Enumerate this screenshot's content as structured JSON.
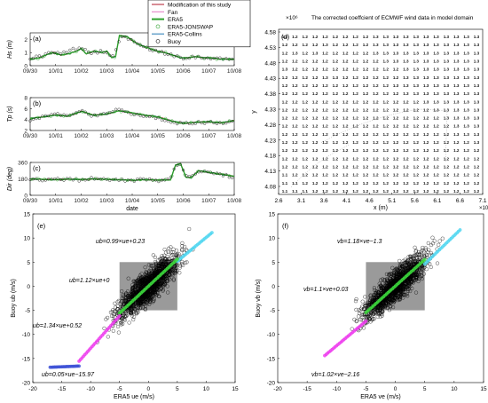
{
  "legend": {
    "entries": [
      {
        "label": "Modification of this study",
        "color": "#b2182b",
        "style": "line"
      },
      {
        "label": "Fan",
        "color": "#e377c2",
        "style": "line"
      },
      {
        "label": "ERA5",
        "color": "#2ca02c",
        "style": "thickline"
      },
      {
        "label": "ERA5-JONSWAP",
        "color": "#2ca02c",
        "style": "circle"
      },
      {
        "label": "ERA5-Collins",
        "color": "#1f77b4",
        "style": "line"
      },
      {
        "label": "Buoy",
        "color": "#000000",
        "style": "circle"
      }
    ]
  },
  "chart_data": [
    {
      "panel": "(a)",
      "type": "line",
      "ylabel": "Hs (m)",
      "ylim": [
        0,
        2.5
      ],
      "yticks": [
        "0",
        "1",
        "2"
      ],
      "xticks": [
        "09/30",
        "10/01",
        "10/02",
        "10/03",
        "10/04",
        "10/05",
        "10/06",
        "10/07",
        "10/08"
      ],
      "series": [
        {
          "name": "ERA5",
          "x": [
            0,
            0.3,
            0.6,
            0.9,
            1.2,
            1.5,
            1.8,
            2.0,
            2.2,
            2.5,
            2.8,
            3.0,
            3.2,
            3.35,
            3.5,
            3.8,
            4.1,
            4.4,
            4.7,
            5.0,
            5.3,
            5.6,
            5.9,
            6.2,
            6.5,
            6.8,
            7.1,
            7.4,
            7.7,
            8.0
          ],
          "values": [
            0.5,
            0.55,
            0.8,
            1.0,
            0.8,
            0.9,
            1.1,
            1.3,
            0.9,
            1.1,
            1.0,
            1.1,
            0.6,
            0.7,
            2.3,
            2.2,
            1.8,
            1.5,
            1.3,
            1.1,
            1.0,
            0.8,
            0.6,
            0.6,
            0.7,
            0.6,
            0.6,
            0.5,
            0.5,
            0.5
          ]
        },
        {
          "name": "Buoy",
          "x": [
            0,
            0.4,
            0.8,
            1.2,
            1.6,
            2.0,
            2.4,
            2.8,
            3.2,
            3.6,
            4.0,
            4.4,
            4.8,
            5.2,
            5.6,
            6.0,
            6.4,
            6.8,
            7.2,
            7.6,
            8.0
          ],
          "values": [
            0.6,
            0.7,
            1.0,
            0.9,
            1.2,
            1.4,
            1.0,
            1.1,
            0.7,
            2.2,
            1.9,
            1.4,
            1.2,
            1.0,
            0.8,
            0.6,
            0.7,
            0.6,
            0.6,
            0.5,
            0.5
          ]
        }
      ]
    },
    {
      "panel": "(b)",
      "type": "line",
      "ylabel": "Tp (s)",
      "ylim": [
        2,
        8
      ],
      "yticks": [
        "2",
        "4",
        "6",
        "8"
      ],
      "xticks": [
        "09/30",
        "10/01",
        "10/02",
        "10/03",
        "10/04",
        "10/05",
        "10/06",
        "10/07",
        "10/08"
      ],
      "series": [
        {
          "name": "ERA5",
          "x": [
            0,
            0.5,
            1.0,
            1.5,
            2.0,
            2.5,
            3.0,
            3.5,
            4.0,
            4.5,
            5.0,
            5.5,
            6.0,
            6.5,
            7.0,
            7.5,
            8.0
          ],
          "values": [
            4.2,
            4.5,
            4.8,
            4.6,
            5.5,
            4.8,
            5.0,
            5.6,
            5.2,
            4.8,
            4.5,
            3.8,
            3.3,
            3.5,
            3.6,
            3.4,
            3.8
          ]
        },
        {
          "name": "Buoy",
          "x": [
            0,
            0.5,
            1.0,
            1.5,
            2.0,
            2.5,
            3.0,
            3.5,
            4.0,
            4.5,
            5.0,
            5.5,
            6.0,
            6.5,
            7.0,
            7.5,
            8.0
          ],
          "values": [
            4.0,
            4.6,
            5.0,
            4.5,
            5.8,
            4.6,
            5.2,
            5.8,
            5.0,
            4.6,
            4.3,
            3.6,
            3.2,
            3.4,
            3.5,
            3.3,
            3.6
          ]
        }
      ]
    },
    {
      "panel": "(c)",
      "type": "line",
      "ylabel": "Dir (deg)",
      "xlabel": "date",
      "ylim": [
        0,
        360
      ],
      "yticks": [
        "0",
        "180",
        "360"
      ],
      "xticks": [
        "09/30",
        "10/01",
        "10/02",
        "10/03",
        "10/04",
        "10/05",
        "10/06",
        "10/07",
        "10/08"
      ],
      "series": [
        {
          "name": "ERA5",
          "x": [
            0,
            0.5,
            1.0,
            1.5,
            2.0,
            2.5,
            3.0,
            3.5,
            4.0,
            4.5,
            5.0,
            5.5,
            5.7,
            5.9,
            6.1,
            6.3,
            6.6,
            7.0,
            7.5,
            8.0
          ],
          "values": [
            180,
            175,
            170,
            178,
            172,
            180,
            175,
            170,
            165,
            170,
            168,
            170,
            330,
            345,
            200,
            190,
            270,
            250,
            230,
            210
          ]
        },
        {
          "name": "Buoy",
          "x": [
            0,
            0.5,
            1.0,
            1.5,
            2.0,
            2.5,
            3.0,
            3.5,
            4.0,
            4.5,
            5.0,
            5.5,
            5.7,
            5.9,
            6.1,
            6.3,
            6.6,
            7.0,
            7.5,
            8.0
          ],
          "values": [
            185,
            170,
            175,
            180,
            168,
            185,
            170,
            165,
            160,
            175,
            160,
            175,
            320,
            340,
            210,
            195,
            265,
            245,
            225,
            200
          ]
        }
      ]
    },
    {
      "panel": "(d)",
      "type": "table",
      "title": "The corrected coeffcient of ECMWF wind data in model domain",
      "xlabel": "x (m)",
      "ylabel": "y",
      "x_exponent": "×10⁵",
      "y_exponent": "×10⁶",
      "xticks": [
        "2.6",
        "3.1",
        "3.6",
        "4.1",
        "4.6",
        "5.1",
        "5.6",
        "6.1",
        "6.6",
        "7.1"
      ],
      "yticks": [
        "4.58",
        "4.53",
        "4.48",
        "4.43",
        "4.38",
        "4.33",
        "4.28",
        "4.23",
        "4.18",
        "4.13",
        "4.08"
      ],
      "rows": [
        [
          "1.2",
          "1.2",
          "1.2",
          "1.2",
          "1.2",
          "1.2",
          "1.2",
          "1.2",
          "1.2",
          "1.3",
          "1.3",
          "1.3",
          "1.3",
          "1.3",
          "1.3",
          "1.3",
          "1.3",
          "1.3",
          "1.3",
          "1.3"
        ],
        [
          "1.2",
          "1.2",
          "1.2",
          "1.2",
          "1.3",
          "1.2",
          "1.2",
          "1.2",
          "1.2",
          "1.3",
          "1.3",
          "1.3",
          "1.3",
          "1.3",
          "1.3",
          "1.3",
          "1.3",
          "1.3",
          "1.3",
          "1.3"
        ],
        [
          "1.2",
          "1.3",
          "1.2",
          "1.3",
          "1.2",
          "1.2",
          "1.2",
          "1.2",
          "1.2",
          "1.3",
          "1.3",
          "1.3",
          "1.3",
          "1.3",
          "1.3",
          "1.3",
          "1.3",
          "1.3",
          "1.3",
          "1.3"
        ],
        [
          "1.2",
          "1.2",
          "1.2",
          "1.2",
          "1.2",
          "1.2",
          "1.2",
          "1.2",
          "1.2",
          "1.2",
          "1.3",
          "1.3",
          "1.3",
          "1.3",
          "1.3",
          "1.3",
          "1.3",
          "1.3",
          "1.3",
          "1.3"
        ],
        [
          "1.3",
          "1.2",
          "1.2",
          "1.2",
          "1.2",
          "1.2",
          "1.2",
          "1.2",
          "1.2",
          "1.2",
          "1.2",
          "1.2",
          "1.3",
          "1.3",
          "1.3",
          "1.3",
          "1.3",
          "1.3",
          "1.3",
          "1.3"
        ],
        [
          "1.2",
          "1.2",
          "1.2",
          "1.2",
          "1.3",
          "1.3",
          "1.2",
          "1.2",
          "1.2",
          "1.2",
          "1.2",
          "1.2",
          "1.3",
          "1.3",
          "1.3",
          "1.3",
          "1.3",
          "1.3",
          "1.3",
          "1.3"
        ],
        [
          "1.2",
          "1.2",
          "1.2",
          "1.2",
          "1.2",
          "1.2",
          "1.2",
          "1.2",
          "1.2",
          "1.2",
          "1.2",
          "1.3",
          "1.3",
          "1.3",
          "1.3",
          "1.3",
          "1.3",
          "1.3",
          "1.3",
          "1.3"
        ],
        [
          "1.2",
          "1.2",
          "1.2",
          "1.2",
          "1.2",
          "1.2",
          "1.2",
          "1.2",
          "1.2",
          "1.2",
          "1.2",
          "1.2",
          "1.3",
          "1.3",
          "1.3",
          "1.3",
          "1.3",
          "1.3",
          "1.3",
          "1.3"
        ],
        [
          "1.2",
          "1.2",
          "1.2",
          "1.2",
          "1.2",
          "1.2",
          "1.2",
          "1.2",
          "1.2",
          "1.2",
          "1.2",
          "1.2",
          "1.2",
          "1.2",
          "1.3",
          "1.3",
          "1.3",
          "1.3",
          "1.3",
          "1.3"
        ],
        [
          "1.2",
          "1.2",
          "1.2",
          "1.2",
          "1.2",
          "1.2",
          "1.2",
          "1.2",
          "1.2",
          "1.2",
          "1.2",
          "1.2",
          "1.2",
          "1.2",
          "1.2",
          "1.3",
          "1.3",
          "1.3",
          "1.3",
          "1.3"
        ],
        [
          "1.2",
          "1.2",
          "1.2",
          "1.2",
          "1.2",
          "1.2",
          "1.2",
          "1.2",
          "1.2",
          "1.2",
          "1.2",
          "1.2",
          "1.2",
          "1.2",
          "1.2",
          "1.2",
          "1.3",
          "1.3",
          "1.3",
          "1.3"
        ],
        [
          "1.2",
          "1.2",
          "1.2",
          "1.2",
          "1.2",
          "1.2",
          "1.2",
          "1.2",
          "1.2",
          "1.2",
          "1.2",
          "1.2",
          "1.2",
          "1.2",
          "1.2",
          "1.2",
          "1.2",
          "1.3",
          "1.3",
          "1.3"
        ],
        [
          "1.2",
          "1.2",
          "1.2",
          "1.2",
          "1.2",
          "1.2",
          "1.2",
          "1.2",
          "1.2",
          "1.2",
          "1.2",
          "1.2",
          "1.2",
          "1.2",
          "1.2",
          "1.2",
          "1.2",
          "1.3",
          "1.3",
          "1.3"
        ],
        [
          "1.2",
          "1.2",
          "1.2",
          "1.2",
          "1.2",
          "1.2",
          "1.2",
          "1.2",
          "1.2",
          "1.2",
          "1.2",
          "1.2",
          "1.2",
          "1.2",
          "1.2",
          "1.2",
          "1.2",
          "1.2",
          "1.2",
          "1.3"
        ],
        [
          "1.2",
          "1.2",
          "1.2",
          "1.2",
          "1.2",
          "1.2",
          "1.2",
          "1.2",
          "1.2",
          "1.2",
          "1.2",
          "1.2",
          "1.2",
          "1.2",
          "1.2",
          "1.2",
          "1.2",
          "1.2",
          "1.2",
          "1.2"
        ],
        [
          "1.2",
          "1.2",
          "1.2",
          "1.2",
          "1.2",
          "1.2",
          "1.2",
          "1.2",
          "1.2",
          "1.2",
          "1.2",
          "1.2",
          "1.2",
          "1.2",
          "1.2",
          "1.2",
          "1.2",
          "1.2",
          "1.2",
          "1.2"
        ],
        [
          "1.2",
          "1.2",
          "1.2",
          "1.2",
          "1.2",
          "1.2",
          "1.2",
          "1.2",
          "1.2",
          "1.2",
          "1.2",
          "1.2",
          "1.2",
          "1.2",
          "1.2",
          "1.2",
          "1.2",
          "1.2",
          "1.2",
          "1.2"
        ],
        [
          "1.1",
          "1.2",
          "1.2",
          "1.2",
          "1.2",
          "1.2",
          "1.2",
          "1.2",
          "1.2",
          "1.2",
          "1.2",
          "1.2",
          "1.2",
          "1.2",
          "1.2",
          "1.2",
          "1.2",
          "1.2",
          "1.2",
          "1.2"
        ],
        [
          "1.1",
          "1.1",
          "1.2",
          "1.2",
          "1.2",
          "1.2",
          "1.2",
          "1.2",
          "1.2",
          "1.2",
          "1.2",
          "1.2",
          "1.2",
          "1.2",
          "1.2",
          "1.2",
          "1.2",
          "1.2",
          "1.2",
          "1.2"
        ],
        [
          "1.1",
          "1.1",
          "1.1",
          "1.2",
          "1.2",
          "1.2",
          "1.2",
          "1.2",
          "1.2",
          "1.2",
          "1.2",
          "1.2",
          "1.2",
          "1.2",
          "1.2",
          "1.2",
          "1.2",
          "1.2",
          "1.2",
          "1.2"
        ]
      ]
    },
    {
      "panel": "(e)",
      "type": "scatter",
      "xlabel": "ERA5 ue (m/s)",
      "ylabel": "Buoy ub (m/s)",
      "xlim": [
        -20,
        15
      ],
      "ylim": [
        -20,
        15
      ],
      "xticks": [
        "-20",
        "-15",
        "-10",
        "-5",
        "0",
        "5",
        "10",
        "15"
      ],
      "yticks": [
        "-20",
        "-15",
        "-10",
        "-5",
        "0",
        "5",
        "10",
        "15"
      ],
      "fits": [
        {
          "label": "ub=0.99×ue+0.23",
          "color": "#4fd6f0",
          "x": [
            5,
            11
          ]
        },
        {
          "label": "ub=1.12×ue+0",
          "color": "#3ddc3d",
          "x": [
            -5,
            5
          ]
        },
        {
          "label": "ub=1.34×ue+0.52",
          "color": "#ee3bee",
          "x": [
            -12,
            -5
          ]
        },
        {
          "label": "ub=0.05×ue−15.97",
          "color": "#3b4fd6",
          "x": [
            -17,
            -12
          ]
        }
      ]
    },
    {
      "panel": "(f)",
      "type": "scatter",
      "xlabel": "ERA5 ve (m/s)",
      "ylabel": "Buoy vb (m/s)",
      "xlim": [
        -20,
        15
      ],
      "ylim": [
        -20,
        15
      ],
      "xticks": [
        "-20",
        "-15",
        "-10",
        "-5",
        "0",
        "5",
        "10",
        "15"
      ],
      "yticks": [
        "-20",
        "-15",
        "-10",
        "-5",
        "0",
        "5",
        "10",
        "15"
      ],
      "fits": [
        {
          "label": "vb=1.18×ve−1.3",
          "color": "#4fd6f0",
          "x": [
            5,
            11
          ]
        },
        {
          "label": "vb=1.1×ve+0.03",
          "color": "#3ddc3d",
          "x": [
            -5,
            5
          ]
        },
        {
          "label": "vb=1.02×ve−2.16",
          "color": "#ee3bee",
          "x": [
            -12,
            -5
          ]
        }
      ]
    }
  ]
}
